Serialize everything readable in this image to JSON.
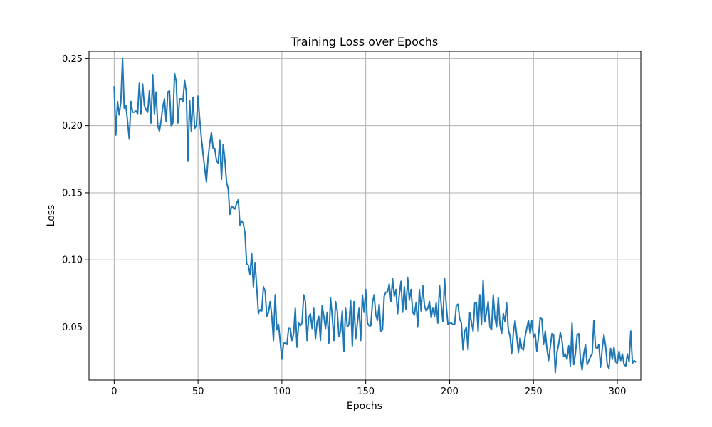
{
  "chart_data": {
    "type": "line",
    "title": "Training Loss over Epochs",
    "xlabel": "Epochs",
    "ylabel": "Loss",
    "xlim": [
      -15,
      314
    ],
    "ylim": [
      0.0105,
      0.2555
    ],
    "x_ticks": [
      0,
      50,
      100,
      150,
      200,
      250,
      300
    ],
    "y_ticks": [
      0.05,
      0.1,
      0.15,
      0.2,
      0.25
    ],
    "y_tick_labels": [
      "0.05",
      "0.10",
      "0.15",
      "0.20",
      "0.25"
    ],
    "grid": true,
    "legend": "none",
    "series": [
      {
        "color": "#1f77b4",
        "x_start": 0,
        "x_step": 1,
        "values": [
          0.229,
          0.193,
          0.218,
          0.208,
          0.218,
          0.25,
          0.213,
          0.215,
          0.203,
          0.19,
          0.218,
          0.21,
          0.21,
          0.211,
          0.209,
          0.232,
          0.209,
          0.231,
          0.215,
          0.212,
          0.21,
          0.226,
          0.202,
          0.238,
          0.209,
          0.225,
          0.2,
          0.196,
          0.204,
          0.214,
          0.22,
          0.203,
          0.225,
          0.226,
          0.2,
          0.202,
          0.239,
          0.233,
          0.202,
          0.22,
          0.22,
          0.218,
          0.234,
          0.225,
          0.174,
          0.219,
          0.196,
          0.221,
          0.198,
          0.2,
          0.222,
          0.205,
          0.191,
          0.179,
          0.168,
          0.158,
          0.176,
          0.187,
          0.195,
          0.183,
          0.183,
          0.174,
          0.172,
          0.189,
          0.16,
          0.186,
          0.175,
          0.158,
          0.153,
          0.134,
          0.14,
          0.139,
          0.138,
          0.142,
          0.145,
          0.126,
          0.129,
          0.127,
          0.12,
          0.097,
          0.096,
          0.089,
          0.105,
          0.08,
          0.098,
          0.08,
          0.06,
          0.063,
          0.062,
          0.08,
          0.077,
          0.058,
          0.061,
          0.069,
          0.058,
          0.04,
          0.074,
          0.048,
          0.052,
          0.039,
          0.026,
          0.038,
          0.038,
          0.037,
          0.049,
          0.049,
          0.04,
          0.045,
          0.064,
          0.035,
          0.053,
          0.051,
          0.053,
          0.074,
          0.069,
          0.04,
          0.057,
          0.06,
          0.049,
          0.064,
          0.041,
          0.054,
          0.058,
          0.04,
          0.066,
          0.058,
          0.049,
          0.061,
          0.038,
          0.072,
          0.058,
          0.04,
          0.069,
          0.062,
          0.043,
          0.047,
          0.062,
          0.032,
          0.064,
          0.05,
          0.052,
          0.07,
          0.036,
          0.069,
          0.041,
          0.053,
          0.064,
          0.04,
          0.074,
          0.061,
          0.078,
          0.053,
          0.051,
          0.051,
          0.068,
          0.074,
          0.059,
          0.055,
          0.067,
          0.047,
          0.048,
          0.073,
          0.076,
          0.076,
          0.082,
          0.069,
          0.086,
          0.073,
          0.078,
          0.06,
          0.074,
          0.084,
          0.061,
          0.08,
          0.063,
          0.087,
          0.07,
          0.078,
          0.061,
          0.059,
          0.068,
          0.05,
          0.078,
          0.062,
          0.081,
          0.066,
          0.062,
          0.064,
          0.069,
          0.057,
          0.064,
          0.058,
          0.068,
          0.053,
          0.081,
          0.067,
          0.054,
          0.086,
          0.066,
          0.052,
          0.053,
          0.053,
          0.052,
          0.052,
          0.066,
          0.067,
          0.056,
          0.053,
          0.033,
          0.047,
          0.05,
          0.033,
          0.061,
          0.054,
          0.047,
          0.068,
          0.068,
          0.047,
          0.074,
          0.052,
          0.085,
          0.054,
          0.061,
          0.069,
          0.05,
          0.048,
          0.074,
          0.057,
          0.05,
          0.072,
          0.052,
          0.045,
          0.06,
          0.054,
          0.068,
          0.048,
          0.043,
          0.03,
          0.046,
          0.055,
          0.044,
          0.031,
          0.042,
          0.034,
          0.033,
          0.043,
          0.049,
          0.055,
          0.045,
          0.055,
          0.042,
          0.045,
          0.032,
          0.043,
          0.057,
          0.056,
          0.037,
          0.047,
          0.034,
          0.025,
          0.035,
          0.045,
          0.044,
          0.016,
          0.031,
          0.037,
          0.046,
          0.04,
          0.028,
          0.03,
          0.026,
          0.036,
          0.021,
          0.053,
          0.022,
          0.03,
          0.044,
          0.045,
          0.026,
          0.018,
          0.03,
          0.037,
          0.022,
          0.025,
          0.028,
          0.03,
          0.055,
          0.035,
          0.034,
          0.037,
          0.02,
          0.034,
          0.044,
          0.036,
          0.022,
          0.019,
          0.034,
          0.026,
          0.035,
          0.024,
          0.023,
          0.032,
          0.025,
          0.03,
          0.022,
          0.021,
          0.03,
          0.024,
          0.047,
          0.023,
          0.025,
          0.024
        ]
      }
    ]
  }
}
